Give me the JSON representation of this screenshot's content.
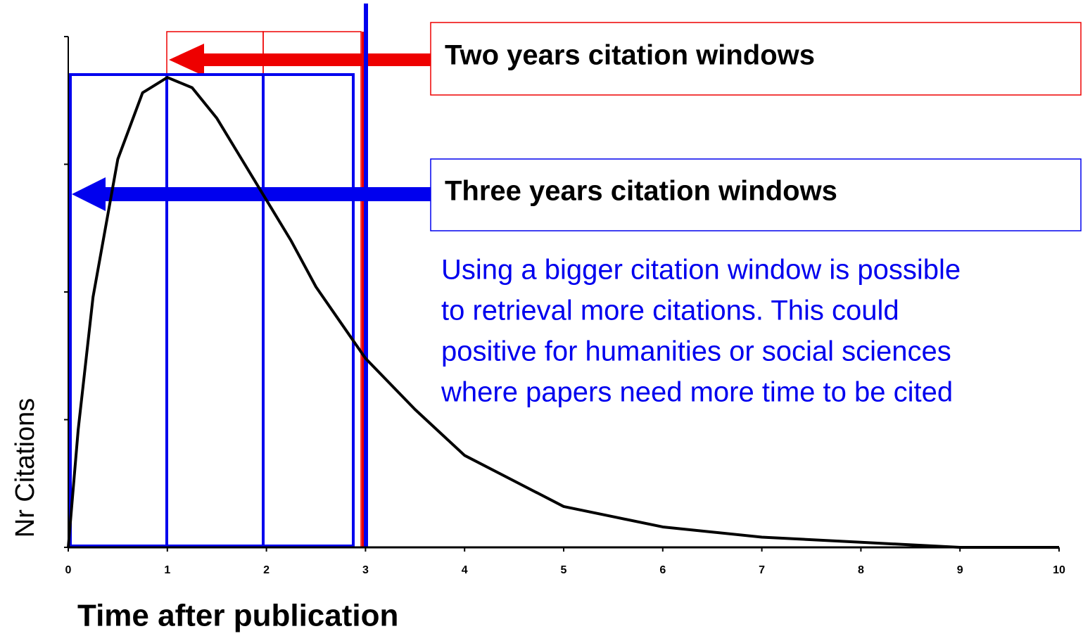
{
  "chart_data": {
    "type": "line",
    "x_label": "Time after publication",
    "y_label": "Nr Citations",
    "x": [
      0,
      0.1,
      0.25,
      0.5,
      0.75,
      1,
      1.25,
      1.5,
      1.75,
      2,
      2.25,
      2.5,
      2.75,
      3,
      3.5,
      4,
      4.5,
      5,
      5.5,
      6,
      7,
      8,
      9,
      10
    ],
    "series": [
      {
        "color": "#000000",
        "values": [
          0,
          0.23,
          0.49,
          0.76,
          0.89,
          0.92,
          0.9,
          0.84,
          0.76,
          0.68,
          0.6,
          0.51,
          0.44,
          0.37,
          0.27,
          0.18,
          0.13,
          0.08,
          0.06,
          0.04,
          0.02,
          0.01,
          0,
          0
        ]
      }
    ],
    "xlim": [
      0,
      10
    ],
    "xticks": [
      0,
      1,
      2,
      3,
      4,
      5,
      6,
      7,
      8,
      9,
      10
    ],
    "ylim": [
      0,
      1
    ],
    "yticks": [
      0,
      0.25,
      0.5,
      0.75,
      1
    ],
    "annotations": {
      "two_years": "Two years citation windows",
      "three_years": "Three years citation windows",
      "note_lines": [
        "Using a bigger citation window is possible",
        "to retrieval more citations. This could",
        "positive for humanities or social sciences",
        "where papers need more time to be cited"
      ]
    }
  }
}
